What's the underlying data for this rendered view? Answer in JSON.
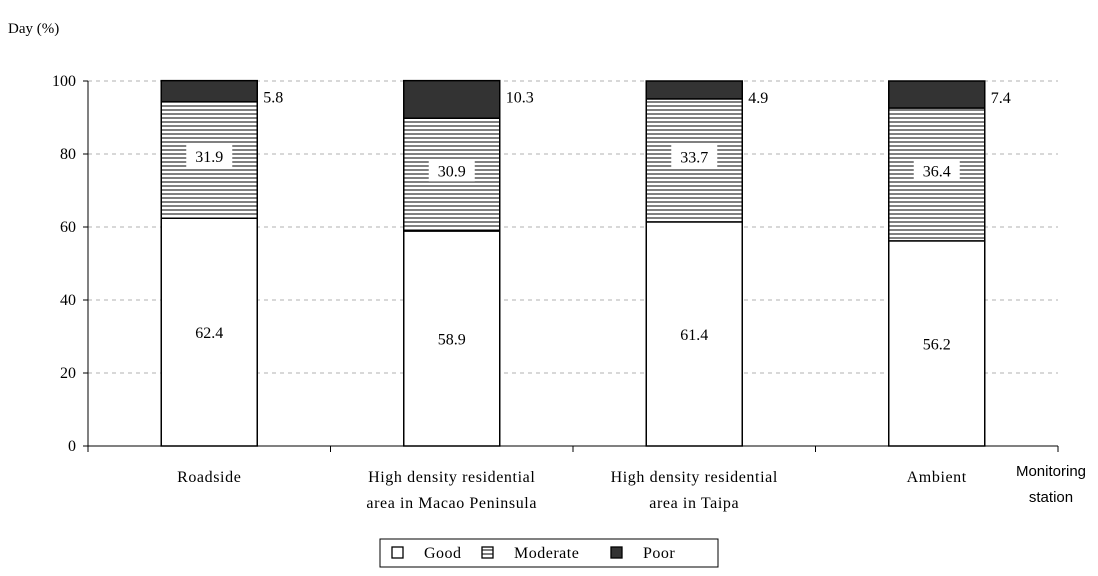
{
  "chart_data": {
    "type": "bar",
    "stacked": true,
    "ylabel": "Day (%)",
    "xlabel": [
      "Monitoring",
      "station"
    ],
    "ylim": [
      0,
      100
    ],
    "yticks": [
      0,
      20,
      40,
      60,
      80,
      100
    ],
    "grid": true,
    "legend_position": "bottom-center",
    "categories": [
      [
        "Roadside"
      ],
      [
        "High density residential",
        "area in Macao Peninsula"
      ],
      [
        "High density residential",
        "area in Taipa"
      ],
      [
        "Ambient"
      ]
    ],
    "series": [
      {
        "name": "Good",
        "values": [
          62.4,
          58.9,
          61.4,
          56.2
        ],
        "pattern": "white",
        "color": "#ffffff"
      },
      {
        "name": "Moderate",
        "values": [
          31.9,
          30.9,
          33.7,
          36.4
        ],
        "pattern": "hlines",
        "color": "#ffffff"
      },
      {
        "name": "Poor",
        "values": [
          5.8,
          10.3,
          4.9,
          7.4
        ],
        "pattern": "dark",
        "color": "#333333"
      }
    ]
  }
}
